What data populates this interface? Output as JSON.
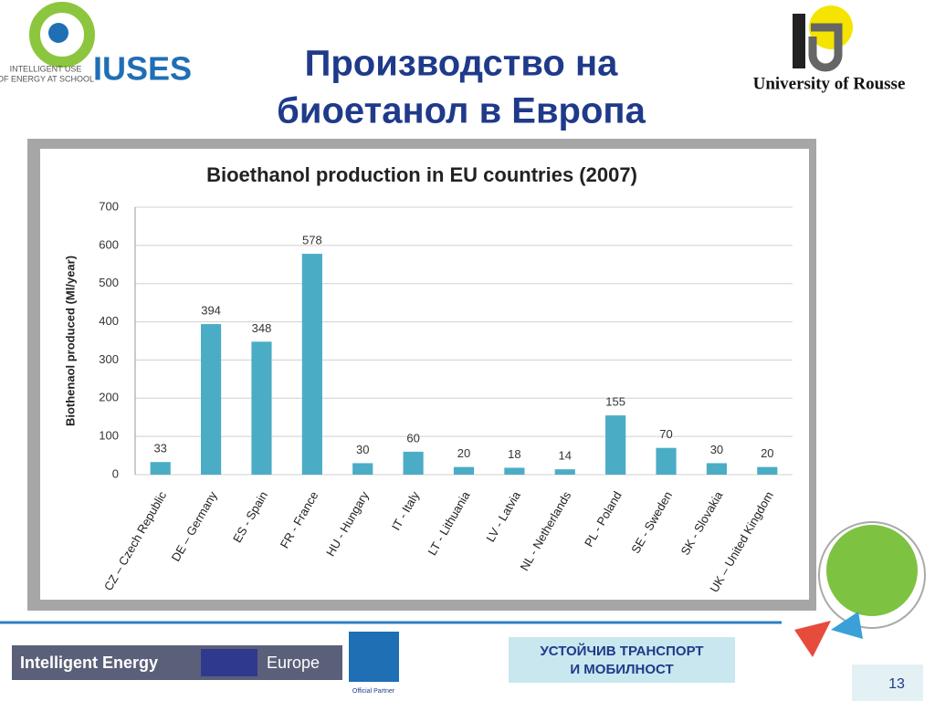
{
  "header": {
    "title_lines": [
      "Производство на",
      "биоетанол в Европа"
    ],
    "logo_left": {
      "tagline_lines": [
        "INTELLIGENT USE",
        "OF ENERGY AT SCHOOL"
      ],
      "name": "IUSES"
    },
    "logo_right": "University of Rousse"
  },
  "footer": {
    "banner_left": "Intelligent Energy",
    "banner_right": "Europe",
    "partner": "Official Partner",
    "box_lines": [
      "УСТОЙЧИВ ТРАНСПОРТ",
      "И МОБИЛНОСТ"
    ],
    "page_number": "13"
  },
  "chart_data": {
    "type": "bar",
    "title": "Bioethanol production in EU countries (2007)",
    "y_label": "Biothenaol produced (Ml/year)",
    "categories": [
      "CZ – Czech Republic",
      "DE – Germany",
      "ES - Spain",
      "FR - France",
      "HU - Hungary",
      "IT - Italy",
      "LT - Lithuania",
      "LV - Latvia",
      "NL - Netherlands",
      "PL - Poland",
      "SE - Sweden",
      "SK - Slovakia",
      "UK – United Kingdom"
    ],
    "values": [
      33,
      394,
      348,
      578,
      30,
      60,
      20,
      18,
      14,
      155,
      70,
      30,
      20
    ],
    "color": "#4bacc6",
    "ylim": [
      0,
      700
    ],
    "yticks": [
      0,
      100,
      200,
      300,
      400,
      500,
      600,
      700
    ],
    "grid": true
  }
}
